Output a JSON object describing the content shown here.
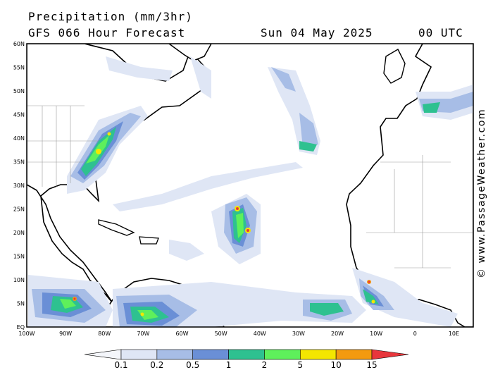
{
  "header": {
    "title": "Precipitation (mm/3hr)",
    "subtitle": "GFS 066 Hour Forecast",
    "date": "Sun 04 May 2025",
    "time": "00 UTC"
  },
  "credit": "© www.PassageWeather.com",
  "map": {
    "lat_range": [
      0,
      60
    ],
    "lon_range": [
      -100,
      15
    ],
    "lat_labels": [
      "60N",
      "55N",
      "50N",
      "45N",
      "40N",
      "35N",
      "30N",
      "25N",
      "20N",
      "15N",
      "10N",
      "5N",
      "EQ"
    ],
    "lat_values": [
      60,
      55,
      50,
      45,
      40,
      35,
      30,
      25,
      20,
      15,
      10,
      5,
      0
    ],
    "lon_labels": [
      "100W",
      "90W",
      "80W",
      "70W",
      "60W",
      "50W",
      "40W",
      "30W",
      "20W",
      "10W",
      "0",
      "10E"
    ],
    "lon_values": [
      -100,
      -90,
      -80,
      -70,
      -60,
      -50,
      -40,
      -30,
      -20,
      -10,
      0,
      10
    ]
  },
  "colorbar": {
    "labels": [
      "0.1",
      "0.2",
      "0.5",
      "1",
      "2",
      "5",
      "10",
      "15"
    ],
    "colors": [
      "#f4f6fb",
      "#dfe6f5",
      "#a7bde6",
      "#6a8fd6",
      "#2ec190",
      "#5ef05b",
      "#f4e600",
      "#f39a10",
      "#e8363c"
    ]
  }
}
